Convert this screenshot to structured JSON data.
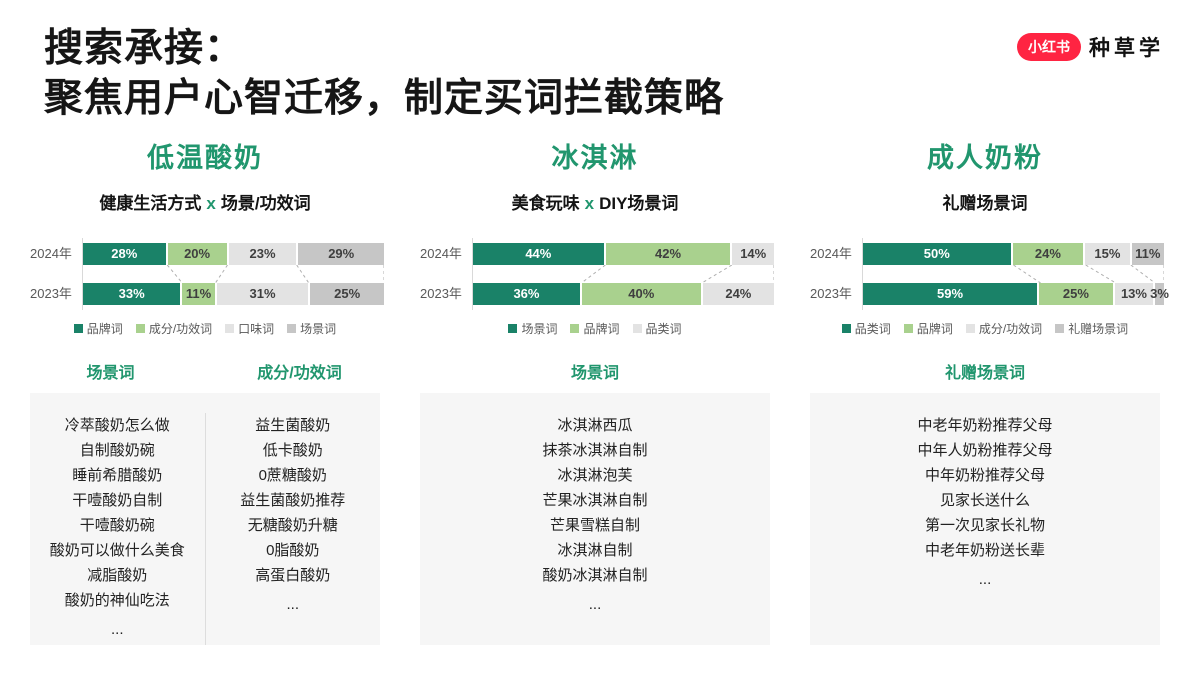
{
  "header": {
    "title_line1": "搜索承接：",
    "title_line2": "聚焦用户心智迁移，制定买词拦截策略",
    "logo_badge": "小红书",
    "logo_text": "种草学"
  },
  "colors": {
    "accent_green": "#21966e",
    "brand_red": "#ff2442",
    "bar_dark_green": "#1a8268",
    "bar_light_green": "#a9d18e",
    "bar_light_gray": "#e3e3e3",
    "bar_mid_gray": "#c6c6c6",
    "list_box_bg": "#f6f6f6"
  },
  "columns": [
    {
      "title": "低温酸奶",
      "subtitle": {
        "strong": "健康生活方式",
        "x": "x",
        "rest": "场景/功效词"
      },
      "lists": [
        {
          "header": "场景词",
          "items": [
            "冷萃酸奶怎么做",
            "自制酸奶碗",
            "睡前希腊酸奶",
            "干噎酸奶自制",
            "干噎酸奶碗",
            "酸奶可以做什么美食",
            "减脂酸奶",
            "酸奶的神仙吃法",
            "..."
          ]
        },
        {
          "header": "成分/功效词",
          "items": [
            "益生菌酸奶",
            "低卡酸奶",
            "0蔗糖酸奶",
            "益生菌酸奶推荐",
            "无糖酸奶升糖",
            "0脂酸奶",
            "高蛋白酸奶",
            "..."
          ]
        }
      ]
    },
    {
      "title": "冰淇淋",
      "subtitle": {
        "strong": "美食玩味",
        "x": "x",
        "rest": "DIY场景词"
      },
      "lists": [
        {
          "header": "场景词",
          "items": [
            "冰淇淋西瓜",
            "抹茶冰淇淋自制",
            "冰淇淋泡芙",
            "芒果冰淇淋自制",
            "芒果雪糕自制",
            "冰淇淋自制",
            "酸奶冰淇淋自制",
            "..."
          ]
        }
      ]
    },
    {
      "title": "成人奶粉",
      "subtitle": {
        "strong": "礼赠场景词",
        "x": "",
        "rest": ""
      },
      "lists": [
        {
          "header": "礼赠场景词",
          "items": [
            "中老年奶粉推荐父母",
            "中年人奶粉推荐父母",
            "中年奶粉推荐父母",
            "见家长送什么",
            "第一次见家长礼物",
            "中老年奶粉送长辈",
            "..."
          ]
        }
      ]
    }
  ],
  "chart_data": [
    {
      "type": "bar",
      "orientation": "horizontal",
      "stacked": true,
      "unit": "%",
      "title": "低温酸奶",
      "categories": [
        "2024年",
        "2023年"
      ],
      "series": [
        {
          "name": "品牌词",
          "values": [
            28,
            33
          ]
        },
        {
          "name": "成分/功效词",
          "values": [
            20,
            11
          ]
        },
        {
          "name": "口味词",
          "values": [
            23,
            31
          ]
        },
        {
          "name": "场景词",
          "values": [
            29,
            25
          ]
        }
      ],
      "palette": [
        "#1a8268",
        "#a9d18e",
        "#e3e3e3",
        "#c6c6c6"
      ],
      "xlim": [
        0,
        100
      ],
      "legend_position": "bottom"
    },
    {
      "type": "bar",
      "orientation": "horizontal",
      "stacked": true,
      "unit": "%",
      "title": "冰淇淋",
      "categories": [
        "2024年",
        "2023年"
      ],
      "series": [
        {
          "name": "场景词",
          "values": [
            44,
            36
          ]
        },
        {
          "name": "品牌词",
          "values": [
            42,
            40
          ]
        },
        {
          "name": "品类词",
          "values": [
            14,
            24
          ]
        }
      ],
      "palette": [
        "#1a8268",
        "#a9d18e",
        "#e3e3e3"
      ],
      "xlim": [
        0,
        100
      ],
      "legend_position": "bottom"
    },
    {
      "type": "bar",
      "orientation": "horizontal",
      "stacked": true,
      "unit": "%",
      "title": "成人奶粉",
      "categories": [
        "2024年",
        "2023年"
      ],
      "series": [
        {
          "name": "品类词",
          "values": [
            50,
            59
          ]
        },
        {
          "name": "品牌词",
          "values": [
            24,
            25
          ]
        },
        {
          "name": "成分/功效词",
          "values": [
            15,
            13
          ]
        },
        {
          "name": "礼赠场景词",
          "values": [
            11,
            3
          ]
        }
      ],
      "palette": [
        "#1a8268",
        "#a9d18e",
        "#e3e3e3",
        "#c6c6c6"
      ],
      "xlim": [
        0,
        100
      ],
      "legend_position": "bottom"
    }
  ]
}
